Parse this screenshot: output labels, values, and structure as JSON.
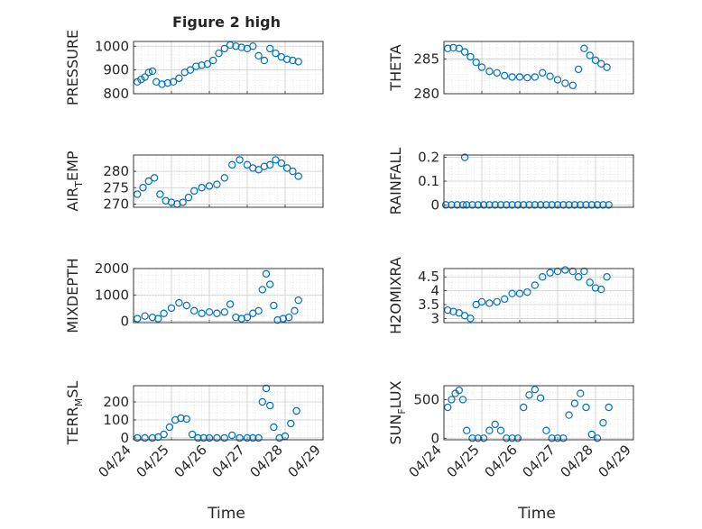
{
  "figure": {
    "title": "Figure 2 high"
  },
  "x_axis": {
    "label": "Time",
    "ticks": [
      "04/24",
      "04/25",
      "04/26",
      "04/27",
      "04/28",
      "04/29"
    ],
    "range": [
      0,
      5
    ]
  },
  "chart_data": [
    {
      "type": "scatter",
      "ylabel": "PRESSURE",
      "ylabel_sub": "",
      "yticks": [
        "800",
        "900",
        "1000"
      ],
      "ylim": [
        800,
        1020
      ],
      "grid": true,
      "x": [
        0.1,
        0.2,
        0.3,
        0.4,
        0.5,
        0.6,
        0.75,
        0.9,
        1.05,
        1.2,
        1.35,
        1.5,
        1.65,
        1.8,
        1.95,
        2.1,
        2.25,
        2.4,
        2.55,
        2.7,
        2.85,
        3.0,
        3.15,
        3.3,
        3.45,
        3.6,
        3.75,
        3.9,
        4.05,
        4.2,
        4.35
      ],
      "y": [
        850,
        860,
        870,
        890,
        895,
        850,
        840,
        845,
        850,
        865,
        890,
        900,
        915,
        920,
        925,
        940,
        970,
        990,
        1005,
        1000,
        995,
        990,
        1000,
        960,
        940,
        990,
        970,
        955,
        945,
        940,
        935
      ]
    },
    {
      "type": "scatter",
      "ylabel": "THETA",
      "ylabel_sub": "",
      "yticks": [
        "280",
        "285"
      ],
      "ylim": [
        280,
        287.5
      ],
      "grid": true,
      "x": [
        0.1,
        0.25,
        0.4,
        0.55,
        0.7,
        0.85,
        1.0,
        1.2,
        1.4,
        1.6,
        1.8,
        2.0,
        2.2,
        2.4,
        2.6,
        2.8,
        3.0,
        3.2,
        3.4,
        3.55,
        3.7,
        3.85,
        4.0,
        4.15,
        4.3
      ],
      "y": [
        286.5,
        286.6,
        286.5,
        286.0,
        285.3,
        284.5,
        283.8,
        283.2,
        283.0,
        282.6,
        282.4,
        282.4,
        282.3,
        282.4,
        283.0,
        282.5,
        282.0,
        281.5,
        281.2,
        283.5,
        286.5,
        285.5,
        284.8,
        284.3,
        283.8
      ]
    },
    {
      "type": "scatter",
      "ylabel": "AIR",
      "ylabel_sub": "T",
      "ylabel_suffix": "EMP",
      "yticks": [
        "270",
        "275",
        "280"
      ],
      "ylim": [
        269,
        285
      ],
      "grid": true,
      "x": [
        0.1,
        0.25,
        0.4,
        0.55,
        0.7,
        0.85,
        1.0,
        1.15,
        1.3,
        1.45,
        1.6,
        1.8,
        2.0,
        2.2,
        2.4,
        2.6,
        2.8,
        3.0,
        3.15,
        3.3,
        3.45,
        3.6,
        3.75,
        3.9,
        4.05,
        4.2,
        4.35
      ],
      "y": [
        273,
        275,
        277,
        278,
        273,
        271,
        270.5,
        270,
        270.5,
        272,
        274,
        275,
        275.5,
        276,
        278,
        282,
        283.5,
        282,
        281,
        280.5,
        281.5,
        282,
        283.5,
        282.5,
        281,
        280,
        278.5
      ]
    },
    {
      "type": "scatter",
      "ylabel": "RAINFALL",
      "ylabel_sub": "",
      "yticks": [
        "0",
        "0.1",
        "0.2"
      ],
      "ylim": [
        -0.01,
        0.21
      ],
      "grid": true,
      "x": [
        0.05,
        0.2,
        0.35,
        0.5,
        0.55,
        0.6,
        0.75,
        0.9,
        1.05,
        1.2,
        1.35,
        1.5,
        1.65,
        1.8,
        1.95,
        2.1,
        2.25,
        2.4,
        2.55,
        2.7,
        2.85,
        3.0,
        3.15,
        3.3,
        3.45,
        3.6,
        3.75,
        3.9,
        4.05,
        4.2,
        4.35
      ],
      "y": [
        0,
        0,
        0,
        0,
        0.2,
        0,
        0,
        0,
        0,
        0,
        0,
        0,
        0,
        0,
        0,
        0,
        0,
        0,
        0,
        0,
        0,
        0,
        0,
        0,
        0,
        0,
        0,
        0,
        0,
        0,
        0
      ]
    },
    {
      "type": "scatter",
      "ylabel": "MIXDEPTH",
      "ylabel_sub": "",
      "yticks": [
        "0",
        "1000",
        "2000"
      ],
      "ylim": [
        -50,
        2000
      ],
      "grid": true,
      "x": [
        0.1,
        0.3,
        0.5,
        0.65,
        0.8,
        1.0,
        1.2,
        1.4,
        1.6,
        1.8,
        2.0,
        2.2,
        2.4,
        2.55,
        2.7,
        2.85,
        3.0,
        3.15,
        3.3,
        3.4,
        3.5,
        3.6,
        3.7,
        3.8,
        3.95,
        4.1,
        4.25,
        4.35
      ],
      "y": [
        100,
        200,
        150,
        100,
        300,
        500,
        700,
        600,
        400,
        300,
        350,
        300,
        350,
        650,
        150,
        100,
        150,
        300,
        400,
        1200,
        1800,
        1400,
        600,
        50,
        100,
        150,
        400,
        800
      ]
    },
    {
      "type": "scatter",
      "ylabel": "H2OMIXRA",
      "ylabel_sub": "",
      "yticks": [
        "3",
        "3.5",
        "4",
        "4.5"
      ],
      "ylim": [
        2.85,
        4.8
      ],
      "grid": true,
      "x": [
        0.1,
        0.25,
        0.4,
        0.55,
        0.7,
        0.85,
        1.0,
        1.2,
        1.4,
        1.6,
        1.8,
        2.0,
        2.2,
        2.4,
        2.6,
        2.8,
        3.0,
        3.2,
        3.4,
        3.55,
        3.7,
        3.85,
        4.0,
        4.15,
        4.3
      ],
      "y": [
        3.3,
        3.25,
        3.2,
        3.1,
        3.0,
        3.5,
        3.6,
        3.55,
        3.6,
        3.7,
        3.9,
        3.9,
        3.95,
        4.2,
        4.5,
        4.65,
        4.7,
        4.75,
        4.7,
        4.5,
        4.7,
        4.3,
        4.1,
        4.05,
        4.5
      ]
    },
    {
      "type": "scatter",
      "ylabel": "TERR",
      "ylabel_sub": "M",
      "ylabel_suffix": "SL",
      "yticks": [
        "0",
        "100",
        "200"
      ],
      "ylim": [
        -10,
        290
      ],
      "grid": true,
      "x": [
        0.1,
        0.3,
        0.5,
        0.65,
        0.8,
        0.95,
        1.1,
        1.25,
        1.4,
        1.55,
        1.7,
        1.85,
        2.0,
        2.2,
        2.4,
        2.6,
        2.8,
        3.0,
        3.15,
        3.3,
        3.4,
        3.5,
        3.6,
        3.7,
        3.85,
        4.0,
        4.15,
        4.3
      ],
      "y": [
        0,
        0,
        0,
        5,
        20,
        60,
        100,
        110,
        105,
        20,
        0,
        0,
        0,
        0,
        0,
        15,
        0,
        0,
        0,
        0,
        200,
        275,
        180,
        60,
        0,
        10,
        80,
        150
      ]
    },
    {
      "type": "scatter",
      "ylabel": "SUN",
      "ylabel_sub": "F",
      "ylabel_suffix": "LUX",
      "yticks": [
        "0",
        "500"
      ],
      "ylim": [
        -20,
        680
      ],
      "grid": true,
      "x": [
        0.1,
        0.2,
        0.3,
        0.4,
        0.5,
        0.6,
        0.75,
        0.9,
        1.05,
        1.2,
        1.35,
        1.5,
        1.65,
        1.8,
        1.95,
        2.1,
        2.25,
        2.4,
        2.55,
        2.7,
        2.85,
        3.0,
        3.15,
        3.3,
        3.45,
        3.6,
        3.75,
        3.9,
        4.05,
        4.2,
        4.35
      ],
      "y": [
        400,
        500,
        580,
        620,
        500,
        100,
        0,
        0,
        0,
        100,
        180,
        100,
        0,
        0,
        0,
        400,
        560,
        630,
        520,
        100,
        0,
        0,
        0,
        300,
        450,
        580,
        400,
        50,
        0,
        200,
        400
      ]
    }
  ]
}
